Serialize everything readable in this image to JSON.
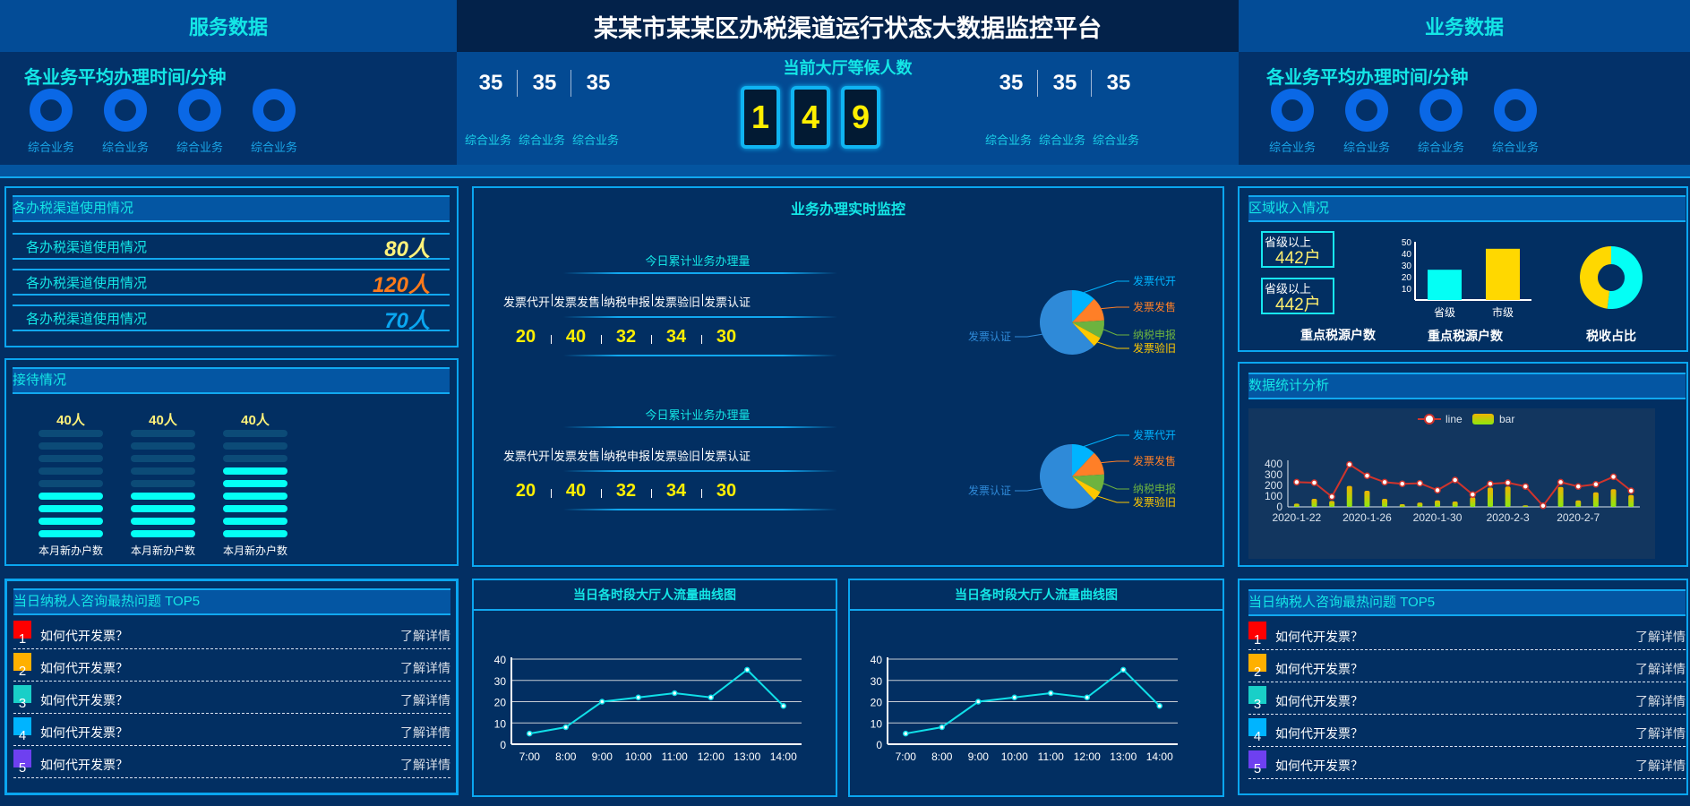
{
  "header": {
    "title": "某某市某某区办税渠道运行状态大数据监控平台",
    "left_section": "服务数据",
    "right_section": "业务数据"
  },
  "avg_time_left": {
    "title": "各业务平均办理时间/分钟",
    "items": [
      "综合业务",
      "综合业务",
      "综合业务",
      "综合业务"
    ]
  },
  "avg_time_right": {
    "title": "各业务平均办理时间/分钟",
    "items": [
      "综合业务",
      "综合业务",
      "综合业务",
      "综合业务"
    ]
  },
  "waiting": {
    "title": "当前大厅等候人数",
    "digits": [
      "1",
      "4",
      "9"
    ],
    "left_values": [
      "35",
      "35",
      "35"
    ],
    "left_labels": [
      "综合业务",
      "综合业务",
      "综合业务"
    ],
    "right_values": [
      "35",
      "35",
      "35"
    ],
    "right_labels": [
      "综合业务",
      "综合业务",
      "综合业务"
    ]
  },
  "channels": {
    "title": "各办税渠道使用情况",
    "rows": [
      {
        "label": "各办税渠道使用情况",
        "value": "80人",
        "color": "#fff27a"
      },
      {
        "label": "各办税渠道使用情况",
        "value": "120人",
        "color": "#ff7a1a"
      },
      {
        "label": "各办税渠道使用情况",
        "value": "70人",
        "color": "#0aa6f0"
      }
    ]
  },
  "reception": {
    "title": "接待情况",
    "columns": [
      {
        "value": "40人",
        "label": "本月新办户数",
        "level": 4,
        "max": 9
      },
      {
        "value": "40人",
        "label": "本月新办户数",
        "level": 4,
        "max": 9
      },
      {
        "value": "40人",
        "label": "本月新办户数",
        "level": 6,
        "max": 9
      }
    ]
  },
  "top5_left": {
    "title": "当日纳税人咨询最热问题 TOP5",
    "items": [
      {
        "rank": "1",
        "question": "如何代开发票？",
        "link": "了解详情",
        "color": "#ff0000"
      },
      {
        "rank": "2",
        "question": "如何代开发票？",
        "link": "了解详情",
        "color": "#ffb000"
      },
      {
        "rank": "3",
        "question": "如何代开发票？",
        "link": "了解详情",
        "color": "#19cfc8"
      },
      {
        "rank": "4",
        "question": "如何代开发票？",
        "link": "了解详情",
        "color": "#00b4ff"
      },
      {
        "rank": "5",
        "question": "如何代开发票？",
        "link": "了解详情",
        "color": "#6e40f0"
      }
    ]
  },
  "top5_right": {
    "title": "当日纳税人咨询最热问题 TOP5",
    "items": [
      {
        "rank": "1",
        "question": "如何代开发票？",
        "link": "了解详情",
        "color": "#ff0000"
      },
      {
        "rank": "2",
        "question": "如何代开发票？",
        "link": "了解详情",
        "color": "#ffb000"
      },
      {
        "rank": "3",
        "question": "如何代开发票？",
        "link": "了解详情",
        "color": "#19cfc8"
      },
      {
        "rank": "4",
        "question": "如何代开发票？",
        "link": "了解详情",
        "color": "#00b4ff"
      },
      {
        "rank": "5",
        "question": "如何代开发票？",
        "link": "了解详情",
        "color": "#6e40f0"
      }
    ]
  },
  "monitor": {
    "title": "业务办理实时监控",
    "blocks": [
      {
        "title": "今日累计业务办理量",
        "labels": [
          "发票代开",
          "发票发售",
          "纳税申报",
          "发票验旧",
          "发票认证"
        ],
        "values": [
          "20",
          "40",
          "32",
          "34",
          "30"
        ]
      },
      {
        "title": "今日累计业务办理量",
        "labels": [
          "发票代开",
          "发票发售",
          "纳税申报",
          "发票验旧",
          "发票认证"
        ],
        "values": [
          "20",
          "40",
          "32",
          "34",
          "30"
        ]
      }
    ]
  },
  "region": {
    "title": "区域收入情况",
    "boxes": [
      {
        "label": "省级以上",
        "value": "442户"
      },
      {
        "label": "省级以上",
        "value": "442户"
      }
    ],
    "caption_boxes": "重点税源户数",
    "caption_bar": "重点税源户数",
    "caption_donut": "税收占比"
  },
  "stats": {
    "title": "数据统计分析"
  },
  "chart_data": [
    {
      "type": "pie",
      "slices": [
        {
          "name": "发票代开",
          "value": 12,
          "color": "#00b4ff"
        },
        {
          "name": "发票发售",
          "value": 12,
          "color": "#ff7f27"
        },
        {
          "name": "纳税申报",
          "value": 9,
          "color": "#6db33f"
        },
        {
          "name": "发票验旧",
          "value": 5,
          "color": "#ffc800"
        },
        {
          "name": "发票认证",
          "value": 62,
          "color": "#2f8ad8"
        }
      ]
    },
    {
      "type": "pie",
      "slices": [
        {
          "name": "发票代开",
          "value": 12,
          "color": "#00b4ff"
        },
        {
          "name": "发票发售",
          "value": 12,
          "color": "#ff7f27"
        },
        {
          "name": "纳税申报",
          "value": 9,
          "color": "#6db33f"
        },
        {
          "name": "发票验旧",
          "value": 5,
          "color": "#ffc800"
        },
        {
          "name": "发票认证",
          "value": 62,
          "color": "#2f8ad8"
        }
      ]
    },
    {
      "type": "bar",
      "categories": [
        "省级",
        "市级"
      ],
      "values": [
        26,
        44
      ],
      "colors": [
        "#04fff5",
        "#ffd800"
      ],
      "ylim": [
        0,
        50
      ],
      "yticks": [
        "50",
        "40",
        "30",
        "20",
        "10"
      ]
    },
    {
      "type": "pie",
      "donut": true,
      "slices": [
        {
          "value": 52,
          "color": "#04fff5"
        },
        {
          "value": 48,
          "color": "#ffd800"
        }
      ]
    },
    {
      "type": "line+bar",
      "x": [
        "2020-1-22",
        "2020-1-23",
        "2020-1-24",
        "2020-1-25",
        "2020-1-26",
        "2020-1-27",
        "2020-1-28",
        "2020-1-29",
        "2020-1-30",
        "2020-1-31",
        "2020-2-1",
        "2020-2-2",
        "2020-2-3",
        "2020-2-4",
        "2020-2-5",
        "2020-2-6",
        "2020-2-7",
        "2020-2-8",
        "2020-2-9",
        "2020-2-10"
      ],
      "xtick_labels": [
        "2020-1-22",
        "2020-1-26",
        "2020-1-30",
        "2020-2-3",
        "2020-2-7"
      ],
      "series": [
        {
          "name": "line",
          "type": "line",
          "color": "#d0342c",
          "values": [
            230,
            225,
            95,
            395,
            290,
            230,
            215,
            220,
            155,
            250,
            115,
            215,
            225,
            190,
            10,
            230,
            190,
            210,
            280,
            150
          ]
        },
        {
          "name": "bar",
          "type": "bar",
          "color": "#a8e000",
          "values": [
            30,
            75,
            55,
            195,
            150,
            75,
            25,
            40,
            60,
            50,
            90,
            180,
            190,
            15,
            5,
            185,
            60,
            135,
            165,
            110
          ]
        }
      ],
      "ylim": [
        0,
        400
      ],
      "yticks": [
        "0",
        "100",
        "200",
        "300",
        "400"
      ],
      "legend": "top-center"
    },
    {
      "type": "line",
      "title": "当日各时段大厅人流量曲线图",
      "categories": [
        "7:00",
        "8:00",
        "9:00",
        "10:00",
        "11:00",
        "12:00",
        "13:00",
        "14:00"
      ],
      "values": [
        5,
        8,
        20,
        22,
        24,
        22,
        35,
        18
      ],
      "ylim": [
        0,
        40
      ],
      "yticks": [
        "0",
        "10",
        "20",
        "30",
        "40"
      ],
      "color": "#10e0e8",
      "grid": true
    },
    {
      "type": "line",
      "title": "当日各时段大厅人流量曲线图",
      "categories": [
        "7:00",
        "8:00",
        "9:00",
        "10:00",
        "11:00",
        "12:00",
        "13:00",
        "14:00"
      ],
      "values": [
        5,
        8,
        20,
        22,
        24,
        22,
        35,
        18
      ],
      "ylim": [
        0,
        40
      ],
      "yticks": [
        "0",
        "10",
        "20",
        "30",
        "40"
      ],
      "color": "#10e0e8",
      "grid": true
    }
  ]
}
